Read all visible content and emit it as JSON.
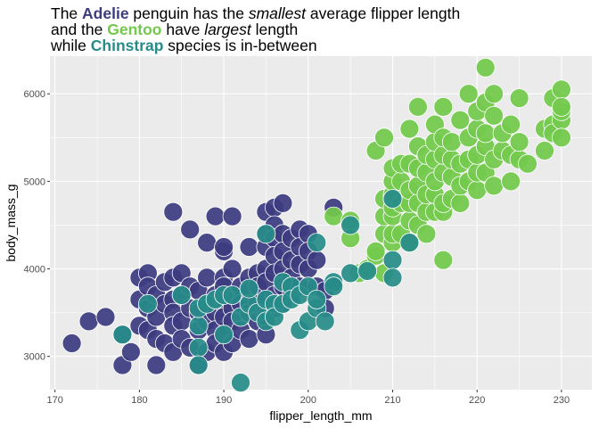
{
  "title": {
    "l1_a": "The ",
    "l1_adelie": "Adelie",
    "l1_b": " penguin has the ",
    "l1_smallest": "smallest",
    "l1_c": " average flipper length",
    "l2_a": "and the ",
    "l2_gentoo": "Gentoo",
    "l2_b": " have ",
    "l2_largest": "largest",
    "l2_c": " length",
    "l3_a": "while ",
    "l3_chinstrap": "Chinstrap",
    "l3_b": " species is in-between"
  },
  "colors": {
    "panel": "#ebebeb",
    "grid_major": "#ffffff",
    "Adelie": "#3c3b80",
    "Gentoo": "#72c94b",
    "Chinstrap": "#278c89"
  },
  "chart_data": {
    "type": "scatter",
    "xlabel": "flipper_length_mm",
    "ylabel": "body_mass_g",
    "xlim": [
      169.4,
      233.6
    ],
    "ylim": [
      2620,
      6430
    ],
    "xticks": [
      170,
      180,
      190,
      200,
      210,
      220,
      230
    ],
    "yticks": [
      3000,
      4000,
      5000,
      6000
    ],
    "grid": true,
    "legend": "none",
    "series": [
      {
        "name": "Adelie",
        "points": [
          [
            172,
            3150
          ],
          [
            174,
            3400
          ],
          [
            176,
            3450
          ],
          [
            178,
            3250
          ],
          [
            178,
            2900
          ],
          [
            179,
            3050
          ],
          [
            180,
            3900
          ],
          [
            180,
            3650
          ],
          [
            180,
            3350
          ],
          [
            181,
            3950
          ],
          [
            181,
            3800
          ],
          [
            181,
            3550
          ],
          [
            181,
            3300
          ],
          [
            182,
            3700
          ],
          [
            182,
            3450
          ],
          [
            182,
            3200
          ],
          [
            182,
            2900
          ],
          [
            183,
            3850
          ],
          [
            183,
            3600
          ],
          [
            183,
            3150
          ],
          [
            184,
            3900
          ],
          [
            184,
            3650
          ],
          [
            184,
            3500
          ],
          [
            184,
            3350
          ],
          [
            184,
            3050
          ],
          [
            184,
            4650
          ],
          [
            185,
            3950
          ],
          [
            185,
            3700
          ],
          [
            185,
            3400
          ],
          [
            185,
            3200
          ],
          [
            186,
            3800
          ],
          [
            186,
            3550
          ],
          [
            186,
            3100
          ],
          [
            186,
            4450
          ],
          [
            187,
            3750
          ],
          [
            187,
            3300
          ],
          [
            187,
            2900
          ],
          [
            187,
            3500
          ],
          [
            188,
            3900
          ],
          [
            188,
            3600
          ],
          [
            188,
            3400
          ],
          [
            188,
            3050
          ],
          [
            188,
            4300
          ],
          [
            189,
            3700
          ],
          [
            189,
            3500
          ],
          [
            189,
            3300
          ],
          [
            189,
            3150
          ],
          [
            189,
            4600
          ],
          [
            190,
            4200
          ],
          [
            190,
            3900
          ],
          [
            190,
            3800
          ],
          [
            190,
            3600
          ],
          [
            190,
            3450
          ],
          [
            190,
            3250
          ],
          [
            190,
            3050
          ],
          [
            190,
            4250
          ],
          [
            191,
            4600
          ],
          [
            191,
            4000
          ],
          [
            191,
            3700
          ],
          [
            191,
            3550
          ],
          [
            191,
            3400
          ],
          [
            191,
            3150
          ],
          [
            192,
            3800
          ],
          [
            192,
            3600
          ],
          [
            192,
            3300
          ],
          [
            193,
            3900
          ],
          [
            193,
            3750
          ],
          [
            193,
            3500
          ],
          [
            193,
            3200
          ],
          [
            193,
            4250
          ],
          [
            194,
            3950
          ],
          [
            194,
            3800
          ],
          [
            194,
            3600
          ],
          [
            194,
            3400
          ],
          [
            195,
            4650
          ],
          [
            195,
            4400
          ],
          [
            195,
            4250
          ],
          [
            195,
            4000
          ],
          [
            195,
            3850
          ],
          [
            195,
            3650
          ],
          [
            195,
            3450
          ],
          [
            195,
            3250
          ],
          [
            196,
            4700
          ],
          [
            196,
            4500
          ],
          [
            196,
            4350
          ],
          [
            196,
            4150
          ],
          [
            196,
            3950
          ],
          [
            196,
            3700
          ],
          [
            196,
            3550
          ],
          [
            197,
            4750
          ],
          [
            197,
            4400
          ],
          [
            197,
            4200
          ],
          [
            197,
            4000
          ],
          [
            197,
            3800
          ],
          [
            197,
            3600
          ],
          [
            198,
            4350
          ],
          [
            198,
            4100
          ],
          [
            198,
            3900
          ],
          [
            198,
            3700
          ],
          [
            199,
            4450
          ],
          [
            199,
            4250
          ],
          [
            199,
            4050
          ],
          [
            199,
            3800
          ],
          [
            200,
            4400
          ],
          [
            200,
            4200
          ],
          [
            200,
            4000
          ],
          [
            201,
            4100
          ],
          [
            201,
            3800
          ],
          [
            202,
            3750
          ],
          [
            202,
            3550
          ],
          [
            203,
            4700
          ]
        ]
      },
      {
        "name": "Gentoo",
        "points": [
          [
            203,
            4600
          ],
          [
            205,
            4550
          ],
          [
            205,
            4350
          ],
          [
            206,
            3950
          ],
          [
            207,
            4000
          ],
          [
            208,
            4150
          ],
          [
            208,
            4200
          ],
          [
            208,
            5350
          ],
          [
            209,
            3950
          ],
          [
            209,
            4400
          ],
          [
            209,
            4600
          ],
          [
            209,
            4800
          ],
          [
            209,
            5500
          ],
          [
            210,
            4300
          ],
          [
            210,
            4400
          ],
          [
            210,
            4600
          ],
          [
            210,
            4700
          ],
          [
            210,
            4800
          ],
          [
            210,
            4850
          ],
          [
            210,
            5000
          ],
          [
            210,
            5150
          ],
          [
            211,
            4400
          ],
          [
            211,
            4750
          ],
          [
            211,
            5000
          ],
          [
            211,
            5200
          ],
          [
            212,
            4300
          ],
          [
            212,
            4550
          ],
          [
            212,
            4750
          ],
          [
            212,
            4900
          ],
          [
            212,
            5200
          ],
          [
            212,
            5600
          ],
          [
            213,
            4500
          ],
          [
            213,
            4750
          ],
          [
            213,
            4950
          ],
          [
            213,
            5150
          ],
          [
            213,
            5400
          ],
          [
            213,
            5850
          ],
          [
            214,
            4400
          ],
          [
            214,
            4650
          ],
          [
            214,
            4850
          ],
          [
            214,
            5100
          ],
          [
            214,
            5300
          ],
          [
            215,
            4650
          ],
          [
            215,
            4850
          ],
          [
            215,
            5000
          ],
          [
            215,
            5250
          ],
          [
            215,
            5450
          ],
          [
            215,
            5650
          ],
          [
            216,
            4650
          ],
          [
            216,
            4750
          ],
          [
            216,
            5100
          ],
          [
            216,
            5300
          ],
          [
            216,
            5500
          ],
          [
            216,
            4100
          ],
          [
            216,
            5850
          ],
          [
            217,
            4800
          ],
          [
            217,
            5050
          ],
          [
            217,
            5250
          ],
          [
            217,
            5450
          ],
          [
            218,
            4750
          ],
          [
            218,
            4950
          ],
          [
            218,
            5200
          ],
          [
            218,
            5700
          ],
          [
            219,
            5000
          ],
          [
            219,
            5250
          ],
          [
            219,
            5500
          ],
          [
            219,
            6000
          ],
          [
            220,
            4900
          ],
          [
            220,
            5100
          ],
          [
            220,
            5300
          ],
          [
            220,
            5600
          ],
          [
            220,
            5800
          ],
          [
            221,
            5100
          ],
          [
            221,
            5400
          ],
          [
            221,
            5550
          ],
          [
            221,
            5900
          ],
          [
            221,
            6300
          ],
          [
            222,
            4950
          ],
          [
            222,
            5250
          ],
          [
            222,
            5750
          ],
          [
            222,
            6000
          ],
          [
            223,
            5350
          ],
          [
            223,
            5550
          ],
          [
            224,
            5000
          ],
          [
            224,
            5300
          ],
          [
            224,
            5650
          ],
          [
            225,
            5250
          ],
          [
            225,
            5450
          ],
          [
            225,
            5950
          ],
          [
            226,
            5200
          ],
          [
            228,
            5350
          ],
          [
            228,
            5600
          ],
          [
            229,
            5650
          ],
          [
            229,
            5550
          ],
          [
            229,
            5950
          ],
          [
            230,
            5700
          ],
          [
            230,
            5800
          ],
          [
            230,
            5500
          ],
          [
            230,
            6050
          ],
          [
            230,
            5850
          ]
        ]
      },
      {
        "name": "Chinstrap",
        "points": [
          [
            178,
            3250
          ],
          [
            181,
            3600
          ],
          [
            185,
            3700
          ],
          [
            187,
            3350
          ],
          [
            187,
            3100
          ],
          [
            187,
            2900
          ],
          [
            187,
            3550
          ],
          [
            188,
            3600
          ],
          [
            189,
            3650
          ],
          [
            190,
            3250
          ],
          [
            190,
            3700
          ],
          [
            191,
            3700
          ],
          [
            192,
            2700
          ],
          [
            192,
            3450
          ],
          [
            193,
            3600
          ],
          [
            193,
            3775
          ],
          [
            194,
            3500
          ],
          [
            195,
            3650
          ],
          [
            195,
            3400
          ],
          [
            195,
            4400
          ],
          [
            196,
            3600
          ],
          [
            196,
            3450
          ],
          [
            197,
            3850
          ],
          [
            197,
            3600
          ],
          [
            198,
            3800
          ],
          [
            198,
            3650
          ],
          [
            199,
            3700
          ],
          [
            199,
            3300
          ],
          [
            200,
            3400
          ],
          [
            200,
            3800
          ],
          [
            201,
            4300
          ],
          [
            201,
            3550
          ],
          [
            201,
            3650
          ],
          [
            202,
            3400
          ],
          [
            203,
            3850
          ],
          [
            203,
            3800
          ],
          [
            205,
            3950
          ],
          [
            205,
            4500
          ],
          [
            207,
            3975
          ],
          [
            210,
            4100
          ],
          [
            210,
            3900
          ],
          [
            210,
            4800
          ],
          [
            212,
            4300
          ]
        ]
      }
    ]
  }
}
